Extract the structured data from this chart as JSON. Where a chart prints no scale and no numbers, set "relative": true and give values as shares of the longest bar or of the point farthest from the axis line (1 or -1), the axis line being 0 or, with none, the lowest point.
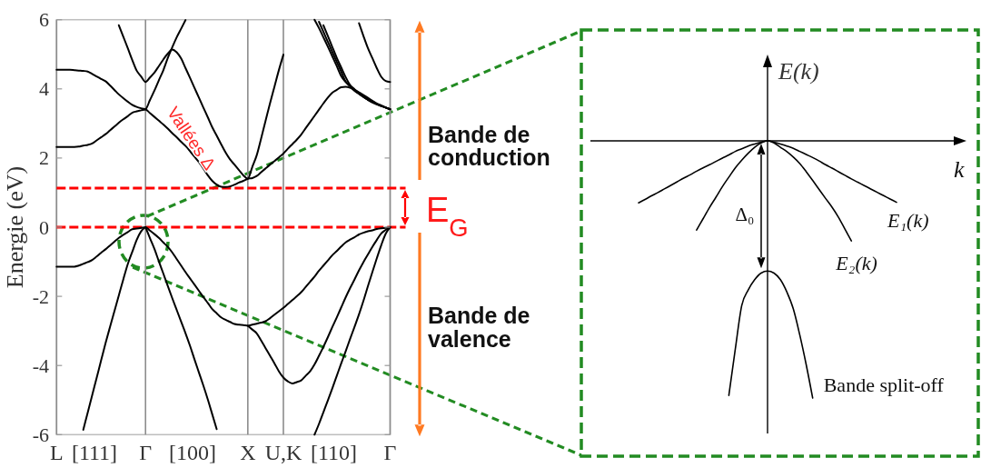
{
  "chart_data": [
    {
      "type": "line",
      "ylabel": "Energie (eV)",
      "ylim": [
        -6,
        6
      ],
      "yticks": [
        -6,
        -4,
        -2,
        0,
        2,
        4,
        6
      ],
      "grid": "x",
      "categories": [
        "L",
        null,
        null,
        null,
        null,
        null,
        null,
        null,
        null,
        null,
        null,
        null,
        null,
        null,
        null,
        null,
        null,
        null,
        null,
        null,
        "Γ",
        null,
        null,
        null,
        null,
        null,
        null,
        null,
        null,
        null,
        null,
        null,
        null,
        null,
        null,
        null,
        null,
        null,
        null,
        null,
        null,
        null,
        null,
        "X",
        null,
        null,
        null,
        null,
        null,
        null,
        null,
        "U,K",
        null,
        null,
        null,
        null,
        null,
        null,
        null,
        null,
        null,
        null,
        null,
        null,
        null,
        null,
        null,
        null,
        null,
        null,
        null,
        null,
        null,
        null,
        null,
        "Γ"
      ],
      "series": [
        {
          "color": "#000000",
          "values": [
            4.55,
            4.55,
            4.55,
            4.55,
            4.54,
            4.53,
            4.52,
            4.5,
            4.43,
            4.36,
            4.29,
            4.22,
            4.1,
            3.97,
            3.84,
            3.73,
            3.63,
            3.54,
            3.48,
            3.44,
            3.41,
            3.3,
            3.19,
            3.08,
            2.97,
            2.85,
            2.72,
            2.6,
            2.47,
            2.35,
            2.2,
            2.04,
            1.88,
            1.7,
            1.5,
            1.34,
            1.23,
            1.17,
            1.16,
            1.18,
            1.23,
            1.29,
            1.34,
            1.4,
            1.42,
            1.48,
            1.59,
            1.7,
            1.81,
            1.91,
            2.02,
            2.13,
            2.27,
            2.4,
            2.53,
            2.68,
            2.86,
            3.04,
            3.22,
            3.4,
            3.58,
            3.75,
            3.89,
            3.97,
            4.05,
            4.06,
            4.03,
            3.97,
            3.9,
            3.82,
            3.74,
            3.66,
            3.58,
            3.52,
            3.46,
            3.41
          ]
        },
        {
          "color": "#000000",
          "values": [
            2.32,
            2.32,
            2.32,
            2.32,
            2.32,
            2.33,
            2.36,
            2.38,
            2.42,
            2.51,
            2.6,
            2.69,
            2.8,
            2.91,
            3.02,
            3.12,
            3.21,
            3.31,
            3.35,
            3.38,
            3.41,
            3.68,
            3.95,
            4.25,
            4.54,
            4.89,
            5.2,
            5.49,
            5.74,
            5.99,
            null,
            null,
            null,
            null,
            null,
            null,
            null,
            null,
            null,
            null,
            null,
            null,
            null,
            null,
            null,
            null,
            null,
            null,
            null,
            null,
            null,
            null,
            null,
            null,
            null,
            null,
            null,
            null,
            null,
            null,
            null,
            null,
            null,
            null,
            null,
            null,
            null,
            null,
            null,
            null,
            null,
            null,
            null,
            null,
            null,
            null
          ]
        },
        {
          "color": "#000000",
          "values": [
            null,
            null,
            null,
            null,
            null,
            null,
            null,
            null,
            null,
            null,
            null,
            null,
            null,
            null,
            5.84,
            5.51,
            5.18,
            4.84,
            4.53,
            4.36,
            4.2,
            4.33,
            4.47,
            4.66,
            4.85,
            5.02,
            5.14,
            5.06,
            4.88,
            4.6,
            4.32,
            4.03,
            3.75,
            3.46,
            3.18,
            2.89,
            2.65,
            2.4,
            2.16,
            1.96,
            1.81,
            1.65,
            1.5,
            1.4,
            1.74,
            2.08,
            2.57,
            3.08,
            3.59,
            4.07,
            4.55,
            4.99,
            null,
            null,
            null,
            null,
            null,
            null,
            null,
            null,
            null,
            null,
            null,
            null,
            null,
            null,
            null,
            null,
            null,
            null,
            null,
            null,
            null,
            null,
            null,
            null
          ]
        },
        {
          "color": "#000000",
          "values": [
            null,
            null,
            null,
            null,
            null,
            null,
            null,
            null,
            null,
            null,
            null,
            null,
            null,
            null,
            null,
            null,
            null,
            null,
            null,
            null,
            null,
            null,
            null,
            null,
            null,
            null,
            null,
            null,
            null,
            null,
            null,
            null,
            null,
            null,
            null,
            null,
            null,
            null,
            null,
            null,
            null,
            null,
            null,
            null,
            null,
            null,
            null,
            null,
            null,
            null,
            null,
            null,
            null,
            null,
            null,
            null,
            null,
            null,
            6,
            5.76,
            5.49,
            5.22,
            4.94,
            4.66,
            4.37,
            4.2,
            4.07,
            3.94,
            3.86,
            3.77,
            3.69,
            3.63,
            3.57,
            3.52,
            3.46,
            3.41
          ]
        },
        {
          "color": "#000000",
          "values": [
            null,
            null,
            null,
            null,
            null,
            null,
            null,
            null,
            null,
            null,
            null,
            null,
            null,
            null,
            null,
            null,
            null,
            null,
            null,
            null,
            null,
            null,
            null,
            null,
            null,
            null,
            null,
            null,
            null,
            null,
            null,
            null,
            null,
            null,
            null,
            null,
            null,
            null,
            null,
            null,
            null,
            null,
            null,
            null,
            null,
            null,
            null,
            null,
            null,
            null,
            null,
            null,
            null,
            null,
            null,
            null,
            null,
            null,
            null,
            5.94,
            5.65,
            5.36,
            5.07,
            4.78,
            4.5,
            4.21,
            4.09,
            3.97,
            3.86,
            3.77,
            3.68,
            3.61,
            3.56,
            3.51,
            3.46,
            3.41
          ]
        },
        {
          "color": "#000000",
          "values": [
            null,
            null,
            null,
            null,
            null,
            null,
            null,
            null,
            null,
            null,
            null,
            null,
            null,
            null,
            null,
            null,
            null,
            null,
            null,
            null,
            null,
            null,
            null,
            null,
            null,
            null,
            null,
            null,
            null,
            null,
            null,
            null,
            null,
            null,
            null,
            null,
            null,
            null,
            null,
            null,
            null,
            null,
            null,
            null,
            null,
            null,
            null,
            null,
            null,
            null,
            null,
            null,
            null,
            null,
            null,
            null,
            null,
            null,
            null,
            null,
            5.84,
            5.53,
            5.21,
            4.9,
            4.62,
            4.34,
            4.11,
            3.99,
            3.87,
            3.77,
            3.69,
            3.61,
            3.55,
            3.5,
            3.46,
            3.41
          ]
        },
        {
          "color": "#000000",
          "values": [
            null,
            null,
            null,
            null,
            null,
            null,
            null,
            null,
            null,
            null,
            null,
            null,
            null,
            null,
            null,
            null,
            null,
            null,
            null,
            null,
            null,
            null,
            null,
            null,
            null,
            null,
            null,
            null,
            null,
            null,
            null,
            null,
            null,
            null,
            null,
            null,
            null,
            null,
            null,
            null,
            null,
            null,
            null,
            null,
            null,
            null,
            null,
            null,
            null,
            null,
            null,
            null,
            null,
            null,
            null,
            null,
            null,
            null,
            null,
            null,
            null,
            null,
            null,
            null,
            null,
            null,
            null,
            null,
            5.9,
            5.53,
            5.18,
            4.89,
            4.6,
            4.35,
            4.23,
            4.2
          ]
        },
        {
          "color": "#000000",
          "values": [
            -1.14,
            -1.14,
            -1.14,
            -1.14,
            -1.14,
            -1.11,
            -1.06,
            -1.01,
            -0.95,
            -0.85,
            -0.74,
            -0.64,
            -0.53,
            -0.42,
            -0.31,
            -0.22,
            -0.14,
            -0.06,
            -0.04,
            -0.02,
            0,
            -0.1,
            -0.2,
            -0.31,
            -0.44,
            -0.57,
            -0.73,
            -0.92,
            -1.11,
            -1.3,
            -1.48,
            -1.66,
            -1.84,
            -2.02,
            -2.19,
            -2.37,
            -2.49,
            -2.61,
            -2.68,
            -2.74,
            -2.8,
            -2.82,
            -2.83,
            -2.85,
            -2.82,
            -2.79,
            -2.76,
            -2.72,
            -2.63,
            -2.53,
            -2.43,
            -2.33,
            -2.22,
            -2.11,
            -2,
            -1.88,
            -1.73,
            -1.58,
            -1.43,
            -1.26,
            -1.11,
            -0.96,
            -0.81,
            -0.69,
            -0.56,
            -0.44,
            -0.36,
            -0.29,
            -0.21,
            -0.16,
            -0.12,
            -0.09,
            -0.05,
            -0.03,
            -0.02,
            0
          ]
        },
        {
          "color": "#000000",
          "values": [
            null,
            null,
            null,
            null,
            null,
            null,
            -5.86,
            -5.36,
            -4.86,
            -4.36,
            -3.86,
            -3.36,
            -2.89,
            -2.43,
            -1.97,
            -1.51,
            -1.07,
            -0.72,
            -0.37,
            -0.12,
            0,
            null,
            null,
            null,
            null,
            null,
            null,
            null,
            null,
            null,
            null,
            null,
            null,
            null,
            null,
            null,
            null,
            null,
            null,
            null,
            null,
            null,
            null,
            null,
            null,
            null,
            null,
            null,
            null,
            null,
            null,
            null,
            null,
            null,
            null,
            null,
            null,
            null,
            null,
            null,
            null,
            null,
            null,
            null,
            null,
            null,
            null,
            null,
            null,
            null,
            null,
            null,
            null,
            null,
            null,
            null
          ]
        },
        {
          "color": "#000000",
          "values": [
            null,
            null,
            null,
            null,
            null,
            null,
            null,
            null,
            null,
            null,
            null,
            null,
            null,
            null,
            null,
            null,
            null,
            null,
            null,
            null,
            0,
            -0.32,
            -0.63,
            -0.99,
            -1.34,
            -1.7,
            -2.05,
            -2.39,
            -2.73,
            -3.07,
            -3.43,
            -3.82,
            -4.2,
            -4.58,
            -4.98,
            -5.41,
            -5.84,
            null,
            null,
            null,
            null,
            null,
            null,
            null,
            null,
            null,
            null,
            null,
            null,
            null,
            null,
            null,
            null,
            null,
            null,
            null,
            null,
            null,
            null,
            null,
            null,
            null,
            null,
            null,
            null,
            null,
            null,
            null,
            null,
            null,
            null,
            null,
            null,
            null,
            null,
            null
          ]
        },
        {
          "color": "#000000",
          "values": [
            null,
            null,
            null,
            null,
            null,
            null,
            null,
            null,
            null,
            null,
            null,
            null,
            null,
            null,
            null,
            null,
            null,
            null,
            null,
            null,
            null,
            null,
            null,
            null,
            null,
            null,
            null,
            null,
            null,
            null,
            null,
            null,
            null,
            null,
            null,
            null,
            null,
            null,
            null,
            null,
            null,
            null,
            null,
            -2.85,
            -2.96,
            -3.07,
            -3.28,
            -3.5,
            -3.72,
            -3.94,
            -4.17,
            -4.35,
            -4.46,
            -4.52,
            -4.48,
            -4.43,
            -4.3,
            -4.17,
            -3.97,
            -3.72,
            -3.46,
            -3.18,
            -2.89,
            -2.61,
            -2.32,
            -2.03,
            -1.76,
            -1.51,
            -1.25,
            -1.01,
            -0.79,
            -0.57,
            -0.37,
            -0.18,
            -0.08,
            0
          ]
        },
        {
          "color": "#000000",
          "values": [
            null,
            null,
            null,
            null,
            null,
            null,
            null,
            null,
            null,
            null,
            null,
            null,
            null,
            null,
            null,
            null,
            null,
            null,
            null,
            null,
            null,
            null,
            null,
            null,
            null,
            null,
            null,
            null,
            null,
            null,
            null,
            null,
            null,
            null,
            null,
            null,
            null,
            null,
            null,
            null,
            null,
            null,
            null,
            null,
            null,
            null,
            null,
            null,
            null,
            null,
            null,
            null,
            null,
            null,
            null,
            null,
            null,
            null,
            -6,
            -5.69,
            -5.35,
            -5.01,
            -4.66,
            -4.3,
            -3.94,
            -3.59,
            -3.23,
            -2.88,
            -2.52,
            -2.13,
            -1.71,
            -1.3,
            -0.9,
            -0.52,
            -0.19,
            0
          ]
        }
      ],
      "ref_lines": [
        {
          "axis": "y",
          "value": 0,
          "color": "#ff0000",
          "line_style": "dashed"
        },
        {
          "axis": "y",
          "value": 1.13,
          "color": "#ff0000",
          "line_style": "dashed"
        }
      ],
      "annotations": [
        "Vallées Δ",
        "Bande de conduction",
        "E$_{G}$",
        "Bande de valence",
        "[111]",
        "[100]",
        "[110]"
      ]
    },
    {
      "type": "line",
      "relative": true,
      "xlabel": "k",
      "ylabel": "E(k)",
      "categories": [
        null,
        null,
        null,
        null,
        null,
        null,
        null,
        null,
        null,
        null,
        null,
        null,
        null,
        null,
        null,
        null,
        null,
        null,
        null,
        null,
        null,
        null,
        null,
        null,
        null,
        null,
        null,
        null,
        null,
        null,
        null,
        null,
        null,
        null,
        null,
        null,
        null,
        null,
        null,
        null,
        null
      ],
      "series": [
        {
          "name": "E₁(k)",
          "color": "#000000",
          "values": [
            -0.241,
            -0.228,
            -0.214,
            -0.201,
            -0.187,
            -0.173,
            -0.159,
            -0.145,
            -0.132,
            -0.118,
            -0.105,
            -0.093,
            -0.08,
            -0.067,
            -0.055,
            -0.041,
            -0.031,
            -0.02,
            -0.012,
            -0.005,
            0,
            -0.005,
            -0.012,
            -0.02,
            -0.029,
            -0.041,
            -0.053,
            -0.065,
            -0.078,
            -0.093,
            -0.106,
            -0.12,
            -0.134,
            -0.148,
            -0.161,
            -0.174,
            -0.187,
            -0.2,
            -0.213,
            -0.226,
            -0.239
          ]
        },
        {
          "name": "E₂(k)",
          "color": "#000000",
          "values": [
            null,
            null,
            null,
            null,
            null,
            null,
            null,
            null,
            null,
            -0.347,
            -0.303,
            -0.259,
            -0.219,
            -0.178,
            -0.141,
            -0.105,
            -0.075,
            -0.048,
            -0.025,
            -0.008,
            0,
            -0.008,
            -0.025,
            -0.042,
            -0.063,
            -0.088,
            -0.12,
            -0.154,
            -0.189,
            -0.224,
            -0.258,
            -0.297,
            -0.343,
            -0.389,
            null,
            null,
            null,
            null,
            null,
            null,
            null
          ]
        },
        {
          "name": "Bande split-off",
          "color": "#000000",
          "values": [
            null,
            null,
            null,
            null,
            null,
            null,
            null,
            null,
            null,
            null,
            null,
            null,
            null,
            null,
            -0.99,
            -0.81,
            -0.64,
            -0.58,
            -0.54,
            -0.514,
            -0.506,
            -0.514,
            -0.54,
            -0.588,
            -0.654,
            -0.755,
            -0.871,
            -1,
            null,
            null,
            null,
            null,
            null,
            null,
            null,
            null,
            null,
            null,
            null,
            null,
            null
          ]
        }
      ],
      "annotations": [
        "Δ₀"
      ]
    }
  ]
}
